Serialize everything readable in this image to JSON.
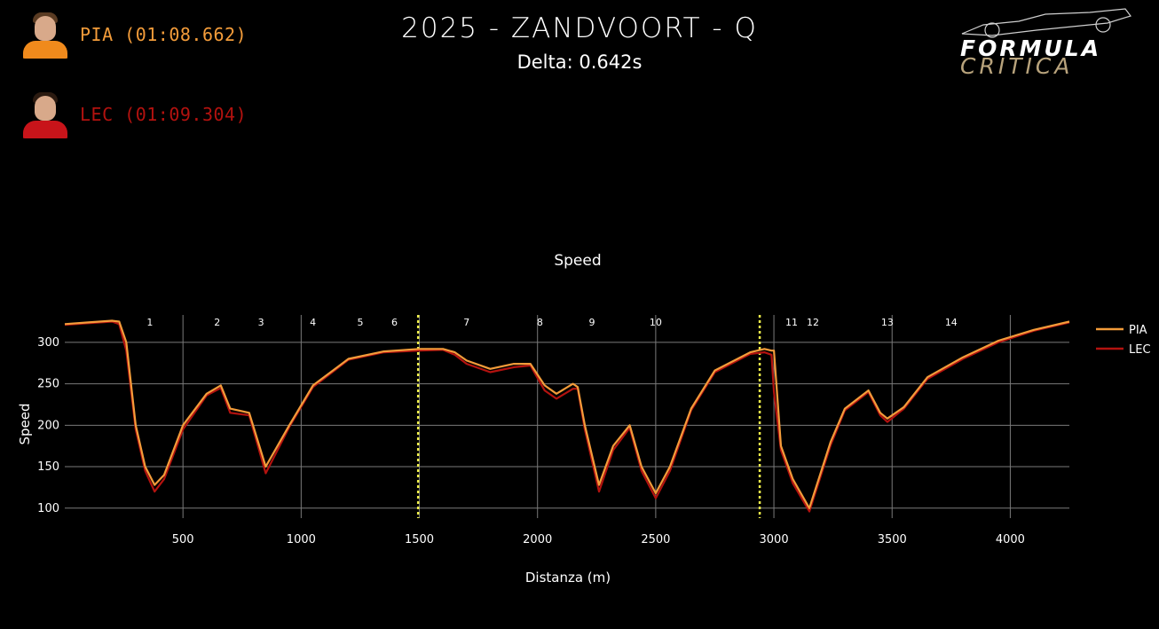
{
  "header": {
    "title": "2025 - ZANDVOORT - Q",
    "delta": "Delta: 0.642s",
    "logo": {
      "line1": "FORMULA",
      "line2": "CRITICA"
    }
  },
  "drivers": [
    {
      "label": "PIA (01:08.662)",
      "color": "#f39c3a"
    },
    {
      "label": "LEC (01:09.304)",
      "color": "#b3120f"
    }
  ],
  "chart_data": {
    "type": "line",
    "title": "Speed",
    "xlabel": "Distanza (m)",
    "ylabel": "Speed",
    "xlim": [
      0,
      4250
    ],
    "ylim": [
      88,
      333
    ],
    "x_ticks": [
      500,
      1000,
      1500,
      2000,
      2500,
      3000,
      3500,
      4000
    ],
    "y_ticks": [
      100,
      150,
      200,
      250,
      300
    ],
    "grid": true,
    "legend_position": "top-right",
    "sector_lines": [
      1495,
      2940
    ],
    "corners": [
      {
        "label": "1",
        "x": 360
      },
      {
        "label": "2",
        "x": 645
      },
      {
        "label": "3",
        "x": 830
      },
      {
        "label": "4",
        "x": 1050
      },
      {
        "label": "5",
        "x": 1250
      },
      {
        "label": "6",
        "x": 1395
      },
      {
        "label": "7",
        "x": 1700
      },
      {
        "label": "8",
        "x": 2010
      },
      {
        "label": "9",
        "x": 2230
      },
      {
        "label": "10",
        "x": 2500
      },
      {
        "label": "11",
        "x": 3075
      },
      {
        "label": "12",
        "x": 3165
      },
      {
        "label": "13",
        "x": 3480
      },
      {
        "label": "14",
        "x": 3750
      }
    ],
    "series": [
      {
        "name": "PIA",
        "color": "#f39c3a",
        "x": [
          0,
          100,
          200,
          230,
          260,
          300,
          340,
          380,
          420,
          500,
          600,
          660,
          700,
          780,
          850,
          950,
          1050,
          1200,
          1350,
          1500,
          1600,
          1650,
          1700,
          1800,
          1900,
          1970,
          2030,
          2080,
          2150,
          2170,
          2200,
          2260,
          2320,
          2390,
          2440,
          2500,
          2560,
          2650,
          2750,
          2900,
          2960,
          2990,
          3000,
          3030,
          3080,
          3150,
          3240,
          3300,
          3400,
          3450,
          3480,
          3550,
          3650,
          3800,
          3950,
          4100,
          4250
        ],
        "y": [
          322,
          324,
          326,
          325,
          300,
          200,
          150,
          128,
          140,
          200,
          238,
          248,
          220,
          215,
          150,
          200,
          248,
          280,
          289,
          292,
          292,
          288,
          278,
          268,
          274,
          274,
          248,
          238,
          250,
          246,
          200,
          128,
          175,
          200,
          150,
          118,
          150,
          220,
          266,
          288,
          292,
          290,
          290,
          175,
          135,
          100,
          180,
          220,
          242,
          215,
          208,
          222,
          258,
          282,
          302,
          315,
          325
        ]
      },
      {
        "name": "LEC",
        "color": "#b3120f",
        "x": [
          0,
          100,
          200,
          230,
          260,
          300,
          340,
          380,
          420,
          500,
          600,
          660,
          700,
          780,
          850,
          950,
          1050,
          1200,
          1350,
          1500,
          1600,
          1650,
          1700,
          1800,
          1900,
          1970,
          2030,
          2080,
          2150,
          2170,
          2200,
          2260,
          2320,
          2390,
          2440,
          2500,
          2560,
          2650,
          2750,
          2900,
          2960,
          2990,
          3000,
          3030,
          3080,
          3150,
          3240,
          3300,
          3400,
          3450,
          3480,
          3550,
          3650,
          3800,
          3950,
          4100,
          4250
        ],
        "y": [
          321,
          323,
          325,
          322,
          290,
          195,
          145,
          120,
          135,
          195,
          236,
          245,
          215,
          212,
          142,
          198,
          246,
          279,
          288,
          290,
          291,
          285,
          274,
          264,
          270,
          272,
          242,
          232,
          244,
          244,
          195,
          120,
          170,
          197,
          145,
          112,
          145,
          218,
          264,
          286,
          288,
          285,
          240,
          170,
          130,
          96,
          176,
          218,
          240,
          212,
          204,
          220,
          256,
          280,
          300,
          314,
          324
        ]
      }
    ]
  }
}
